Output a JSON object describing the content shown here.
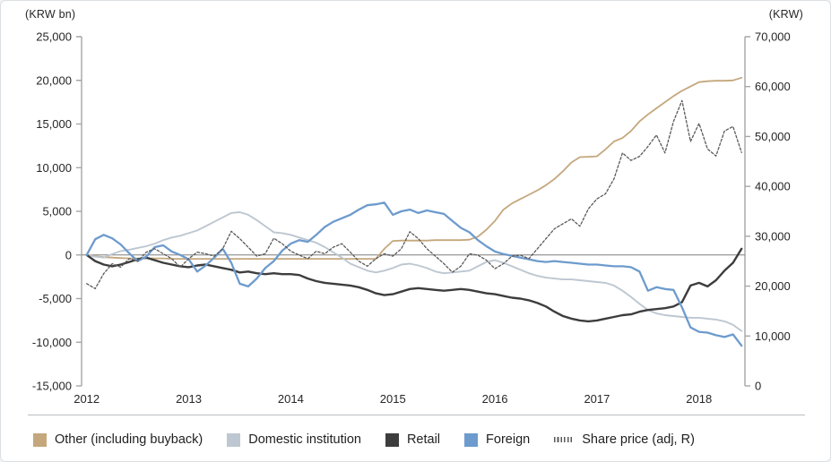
{
  "chart_data": {
    "type": "line",
    "title": "",
    "left_axis_unit": "(KRW bn)",
    "right_axis_unit": "(KRW)",
    "xlim": [
      2011.95,
      2018.45
    ],
    "ylim_left": [
      -15000,
      25000
    ],
    "ylim_right": [
      0,
      70000
    ],
    "grid": false,
    "legend_position": "bottom",
    "x_start": 2012.0,
    "x_step_months": 1,
    "left_ticks": [
      {
        "v": 25000,
        "label": "25,000"
      },
      {
        "v": 20000,
        "label": "20,000"
      },
      {
        "v": 15000,
        "label": "15,000"
      },
      {
        "v": 10000,
        "label": "10,000"
      },
      {
        "v": 5000,
        "label": "5,000"
      },
      {
        "v": 0,
        "label": "0"
      },
      {
        "v": -5000,
        "label": "-5,000"
      },
      {
        "v": -10000,
        "label": "-10,000"
      },
      {
        "v": -15000,
        "label": "-15,000"
      }
    ],
    "right_ticks": [
      {
        "v": 70000,
        "label": "70,000"
      },
      {
        "v": 60000,
        "label": "60,000"
      },
      {
        "v": 50000,
        "label": "50,000"
      },
      {
        "v": 40000,
        "label": "40,000"
      },
      {
        "v": 30000,
        "label": "30,000"
      },
      {
        "v": 20000,
        "label": "20,000"
      },
      {
        "v": 10000,
        "label": "10,000"
      },
      {
        "v": 0,
        "label": "0"
      }
    ],
    "x_ticks": [
      {
        "v": 2012,
        "label": "2012"
      },
      {
        "v": 2013,
        "label": "2013"
      },
      {
        "v": 2014,
        "label": "2014"
      },
      {
        "v": 2015,
        "label": "2015"
      },
      {
        "v": 2016,
        "label": "2016"
      },
      {
        "v": 2017,
        "label": "2017"
      },
      {
        "v": 2018,
        "label": "2018"
      }
    ],
    "colors": {
      "axis_line": "#a6a6a6",
      "zero_line": "#7f7f7f",
      "tick_text": "#262626"
    },
    "series": [
      {
        "name": "Other (including buyback)",
        "axis": "L",
        "style": "solid",
        "color": "#c5a77d",
        "values": [
          0,
          -150,
          -250,
          -300,
          -350,
          -400,
          -400,
          -400,
          -400,
          -400,
          -450,
          -450,
          -450,
          -450,
          -450,
          -450,
          -450,
          -450,
          -450,
          -450,
          -450,
          -450,
          -450,
          -450,
          -450,
          -450,
          -450,
          -450,
          -450,
          -450,
          -450,
          -450,
          -450,
          -450,
          -450,
          700,
          1600,
          1650,
          1650,
          1650,
          1650,
          1700,
          1700,
          1700,
          1700,
          1750,
          2100,
          2900,
          3900,
          5200,
          5900,
          6400,
          6900,
          7400,
          8000,
          8700,
          9600,
          10600,
          11200,
          11250,
          11300,
          12100,
          13000,
          13400,
          14200,
          15300,
          16100,
          16800,
          17500,
          18200,
          18800,
          19300,
          19800,
          19900,
          19950,
          19950,
          20000,
          20300
        ]
      },
      {
        "name": "Domestic institution",
        "axis": "L",
        "style": "solid",
        "color": "#bdc7d1",
        "values": [
          0,
          -200,
          -300,
          100,
          450,
          600,
          800,
          1000,
          1300,
          1700,
          2000,
          2200,
          2500,
          2800,
          3300,
          3800,
          4300,
          4800,
          4900,
          4600,
          4000,
          3300,
          2600,
          2500,
          2300,
          2000,
          1700,
          1400,
          900,
          300,
          -300,
          -1000,
          -1400,
          -1800,
          -2000,
          -1800,
          -1500,
          -1100,
          -1000,
          -1200,
          -1500,
          -1900,
          -2100,
          -2000,
          -1900,
          -1800,
          -1300,
          -800,
          -600,
          -900,
          -1300,
          -1700,
          -2100,
          -2400,
          -2600,
          -2700,
          -2800,
          -2800,
          -2900,
          -3000,
          -3100,
          -3200,
          -3500,
          -4100,
          -4800,
          -5600,
          -6300,
          -6700,
          -6900,
          -7000,
          -7100,
          -7200,
          -7200,
          -7300,
          -7400,
          -7600,
          -8000,
          -8700
        ]
      },
      {
        "name": "Retail",
        "axis": "L",
        "style": "solid",
        "color": "#3d3d3d",
        "values": [
          0,
          -700,
          -1100,
          -1300,
          -1100,
          -800,
          -500,
          -300,
          -600,
          -900,
          -1100,
          -1300,
          -1400,
          -1200,
          -1100,
          -1300,
          -1500,
          -1700,
          -2000,
          -1900,
          -2100,
          -2200,
          -2100,
          -2200,
          -2200,
          -2300,
          -2700,
          -3000,
          -3200,
          -3300,
          -3400,
          -3500,
          -3700,
          -4000,
          -4400,
          -4600,
          -4500,
          -4200,
          -3900,
          -3800,
          -3900,
          -4000,
          -4100,
          -4000,
          -3900,
          -4000,
          -4200,
          -4400,
          -4500,
          -4700,
          -4900,
          -5000,
          -5200,
          -5500,
          -5900,
          -6500,
          -7000,
          -7300,
          -7500,
          -7600,
          -7500,
          -7300,
          -7100,
          -6900,
          -6800,
          -6500,
          -6300,
          -6200,
          -6100,
          -5900,
          -5400,
          -3500,
          -3200,
          -3600,
          -2900,
          -1800,
          -900,
          700
        ]
      },
      {
        "name": "Foreign",
        "axis": "L",
        "style": "solid",
        "color": "#6d9bcd",
        "values": [
          0,
          1800,
          2300,
          1900,
          1200,
          200,
          -700,
          -200,
          900,
          1100,
          400,
          0,
          -500,
          -1900,
          -1200,
          -300,
          700,
          -900,
          -3300,
          -3600,
          -2700,
          -1500,
          -700,
          500,
          1300,
          1700,
          1500,
          2300,
          3200,
          3800,
          4200,
          4600,
          5200,
          5700,
          5800,
          6000,
          4600,
          5000,
          5200,
          4800,
          5100,
          4900,
          4700,
          3900,
          3100,
          2600,
          1700,
          1000,
          400,
          100,
          -100,
          -300,
          -500,
          -700,
          -800,
          -700,
          -800,
          -900,
          -1000,
          -1100,
          -1100,
          -1200,
          -1300,
          -1300,
          -1400,
          -1900,
          -4100,
          -3700,
          -3900,
          -4000,
          -6000,
          -8300,
          -8800,
          -8900,
          -9200,
          -9400,
          -9100,
          -10400
        ]
      },
      {
        "name": "Share price (adj, R)",
        "axis": "R",
        "style": "dashed",
        "color": "#595959",
        "values": [
          20500,
          19500,
          22500,
          24500,
          23800,
          25500,
          25000,
          26800,
          27500,
          26500,
          25500,
          23800,
          25500,
          26800,
          26500,
          26000,
          27500,
          31000,
          29500,
          27800,
          26000,
          26500,
          29600,
          28500,
          27000,
          26200,
          25500,
          27000,
          26500,
          27800,
          28500,
          26800,
          25000,
          24000,
          25500,
          26500,
          26000,
          27500,
          30900,
          29500,
          27500,
          26000,
          24500,
          22800,
          24000,
          26500,
          26200,
          25200,
          23500,
          24500,
          26000,
          26200,
          25500,
          27500,
          29500,
          31500,
          32500,
          33500,
          32000,
          35500,
          37500,
          38500,
          41500,
          46700,
          45200,
          46000,
          48000,
          50300,
          46700,
          53000,
          57200,
          49000,
          52600,
          47500,
          46100,
          51100,
          52000,
          46800
        ]
      }
    ]
  }
}
